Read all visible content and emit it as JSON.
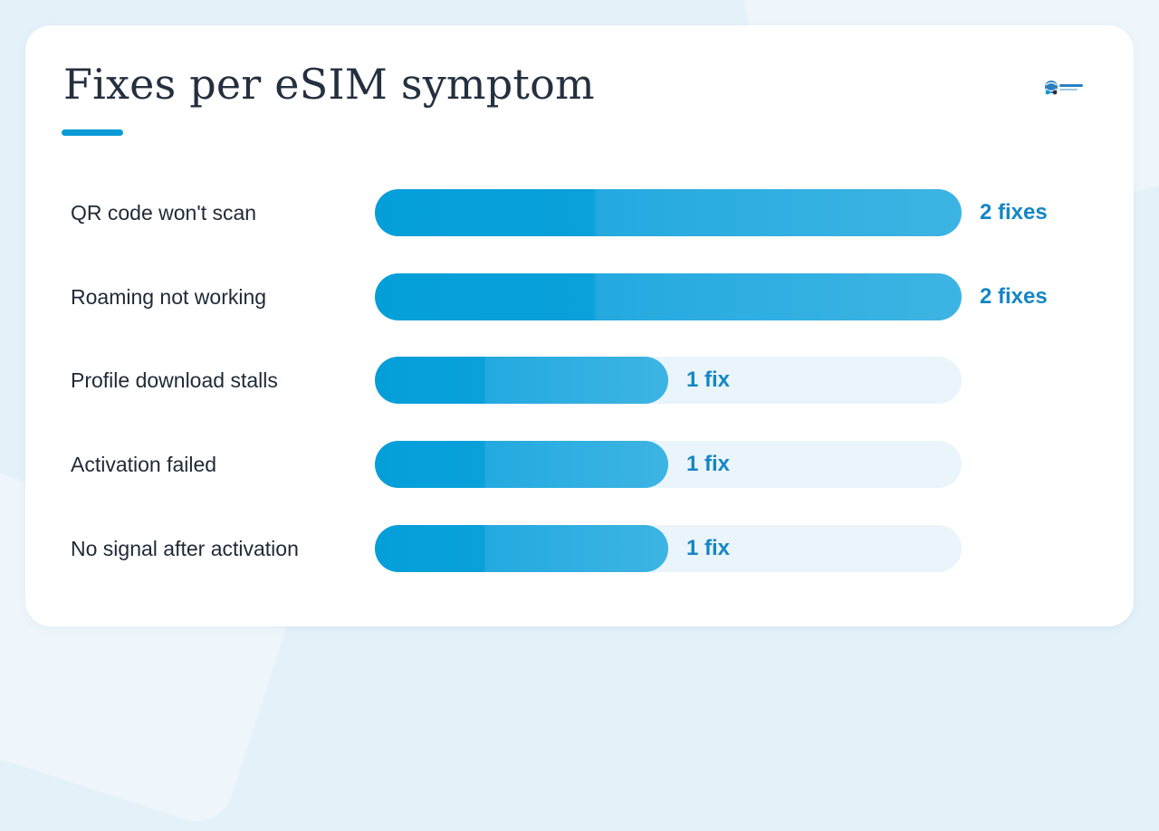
{
  "title": "Fixes per eSIM symptom",
  "colors": {
    "accent": "#0a9bd6",
    "bar": "#049fd9",
    "bar_light": "#3db4e3",
    "track": "#eaf4fb",
    "value_text": "#1486c4",
    "label_text": "#1f2a36"
  },
  "logo": {
    "icon": "globe-people-logo-icon"
  },
  "chart_data": {
    "type": "bar",
    "orientation": "horizontal",
    "categories": [
      "QR code won't scan",
      "Roaming not working",
      "Profile download stalls",
      "Activation failed",
      "No signal after activation"
    ],
    "values": [
      2,
      2,
      1,
      1,
      1
    ],
    "value_labels": [
      "2 fixes",
      "2 fixes",
      "1 fix",
      "1 fix",
      "1 fix"
    ],
    "xlim": [
      0,
      2
    ],
    "grid": false,
    "legend": "none"
  }
}
